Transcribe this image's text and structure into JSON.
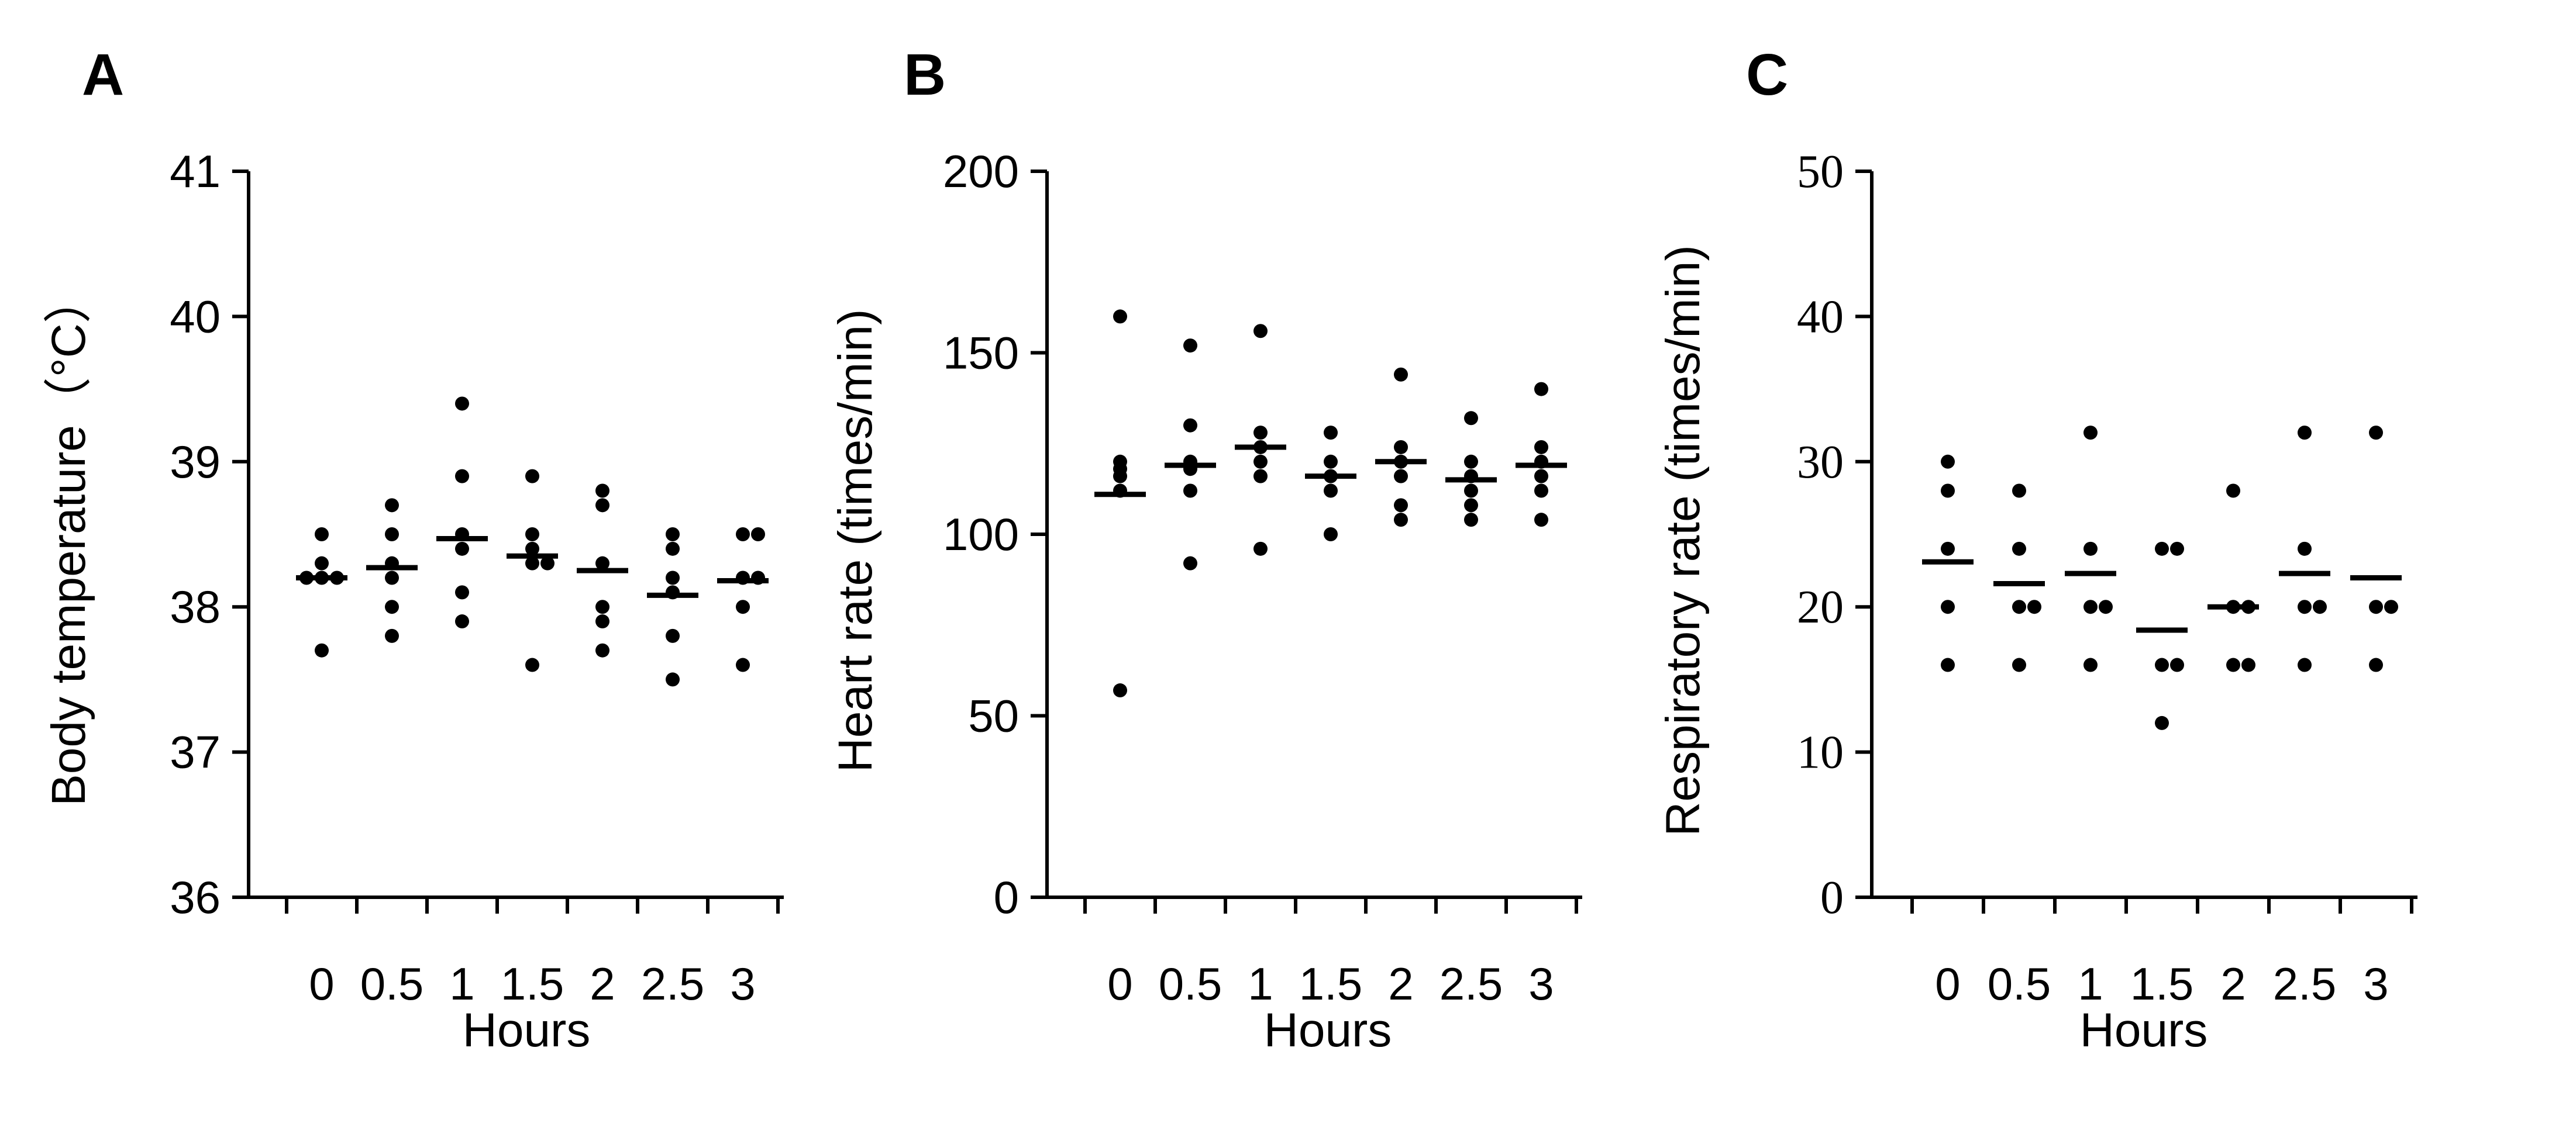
{
  "chart_data": [
    {
      "type": "scatter",
      "panel_label": "A",
      "ylabel": "Body temperature（°C）",
      "xlabel": "Hours",
      "categories": [
        "0",
        "0.5",
        "1",
        "1.5",
        "2",
        "2.5",
        "3"
      ],
      "ylim": [
        36,
        41
      ],
      "yticks": [
        "36",
        "37",
        "38",
        "39",
        "40",
        "41"
      ],
      "points": [
        [
          38.5,
          38.2,
          38.2,
          38.2,
          38.3,
          37.7
        ],
        [
          38.7,
          38.5,
          38.2,
          38.0,
          37.8,
          38.3
        ],
        [
          39.4,
          38.9,
          38.4,
          38.5,
          38.1,
          37.9
        ],
        [
          38.9,
          38.5,
          38.4,
          38.3,
          38.3,
          37.6
        ],
        [
          38.8,
          38.7,
          38.3,
          38.0,
          37.9,
          37.7
        ],
        [
          38.5,
          38.4,
          38.1,
          37.8,
          37.5,
          38.2
        ],
        [
          38.5,
          38.5,
          38.2,
          38.2,
          37.6,
          38.0
        ]
      ],
      "means": [
        38.2,
        38.27,
        38.47,
        38.35,
        38.25,
        38.08,
        38.18
      ]
    },
    {
      "type": "scatter",
      "panel_label": "B",
      "ylabel": "Heart rate (times/min)",
      "xlabel": "Hours",
      "categories": [
        "0",
        "0.5",
        "1",
        "1.5",
        "2",
        "2.5",
        "3"
      ],
      "ylim": [
        0,
        200
      ],
      "yticks": [
        "0",
        "50",
        "100",
        "150",
        "200"
      ],
      "points": [
        [
          160,
          120,
          118,
          116,
          112,
          57
        ],
        [
          152,
          130,
          120,
          118,
          112,
          92
        ],
        [
          156,
          128,
          124,
          120,
          116,
          96
        ],
        [
          128,
          120,
          116,
          112,
          100
        ],
        [
          144,
          124,
          120,
          116,
          108,
          104
        ],
        [
          132,
          120,
          116,
          112,
          108,
          104
        ],
        [
          140,
          124,
          120,
          116,
          112,
          104
        ]
      ],
      "means": [
        111,
        119,
        124,
        116,
        120,
        115,
        119
      ]
    },
    {
      "type": "scatter",
      "panel_label": "C",
      "ylabel": "Respiratory rate (times/min)",
      "xlabel": "Hours",
      "categories": [
        "0",
        "0.5",
        "1",
        "1.5",
        "2",
        "2.5",
        "3"
      ],
      "ylim": [
        0,
        50
      ],
      "yticks": [
        "0",
        "10",
        "20",
        "30",
        "40",
        "50"
      ],
      "points": [
        [
          30,
          28,
          24,
          20,
          16
        ],
        [
          28,
          24,
          20,
          20,
          16
        ],
        [
          32,
          24,
          20,
          20,
          16
        ],
        [
          24,
          24,
          16,
          16,
          12
        ],
        [
          28,
          20,
          20,
          16,
          16
        ],
        [
          32,
          24,
          20,
          20,
          16
        ],
        [
          32,
          20,
          20,
          16
        ]
      ],
      "means": [
        23.1,
        21.6,
        22.3,
        18.4,
        20.0,
        22.3,
        22.0
      ]
    }
  ]
}
